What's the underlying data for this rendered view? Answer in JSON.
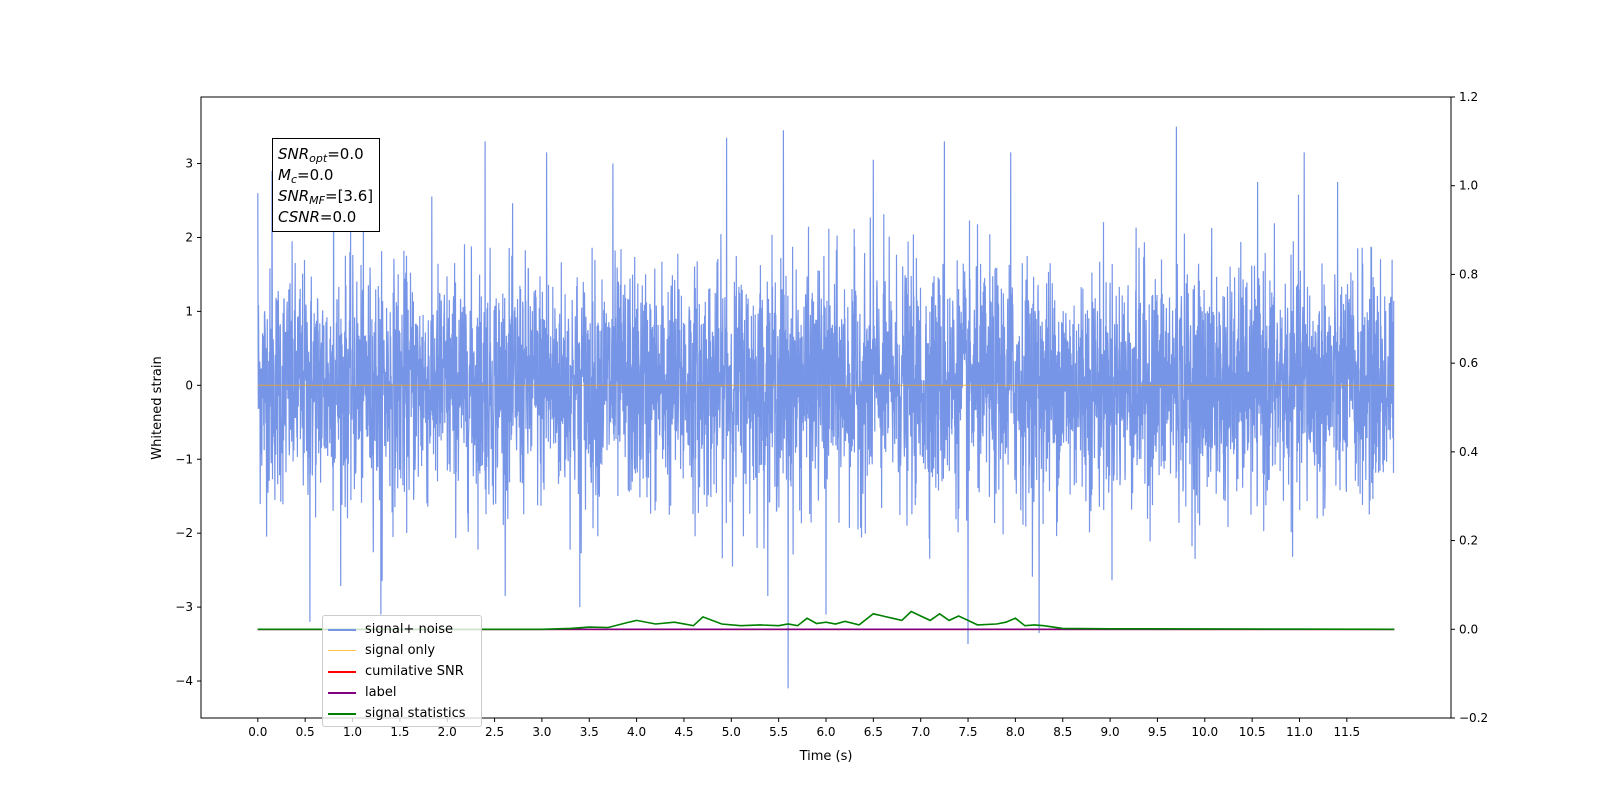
{
  "chart_data": {
    "type": "line",
    "title": "",
    "xlabel": "Time (s)",
    "ylabel": "Whitened strain",
    "xlim": [
      -0.6,
      12.6
    ],
    "ylim": [
      -4.5,
      3.9
    ],
    "y2lim": [
      -0.2,
      1.2
    ],
    "x_ticks": [
      "0.0",
      "0.5",
      "1.0",
      "1.5",
      "2.0",
      "2.5",
      "3.0",
      "3.5",
      "4.0",
      "4.5",
      "5.0",
      "5.5",
      "6.0",
      "6.5",
      "7.0",
      "7.5",
      "8.0",
      "8.5",
      "9.0",
      "9.5",
      "10.0",
      "10.5",
      "11.0",
      "11.5"
    ],
    "y_ticks": [
      "−4",
      "−3",
      "−2",
      "−1",
      "0",
      "1",
      "2",
      "3"
    ],
    "y2_ticks": [
      "−0.2",
      "0.0",
      "0.2",
      "0.4",
      "0.6",
      "0.8",
      "1.0",
      "1.2"
    ],
    "grid": false,
    "legend_position": "lower-left",
    "series": [
      {
        "name": "signal+ noise",
        "color": "#7795e7",
        "axis": "left",
        "description": "whitened noise, approx. Gaussian, std ~0.8, range -4.1 to 3.5, t = 0 to 12 s",
        "peaks": [
          [
            0.0,
            2.6
          ],
          [
            0.15,
            2.9
          ],
          [
            0.55,
            -3.2
          ],
          [
            0.8,
            2.8
          ],
          [
            1.3,
            -3.1
          ],
          [
            2.4,
            3.3
          ],
          [
            3.05,
            3.15
          ],
          [
            3.4,
            -3.0
          ],
          [
            3.75,
            3.0
          ],
          [
            4.95,
            3.35
          ],
          [
            5.55,
            3.45
          ],
          [
            5.6,
            -4.1
          ],
          [
            6.0,
            -3.1
          ],
          [
            6.5,
            3.05
          ],
          [
            7.25,
            3.3
          ],
          [
            7.5,
            -3.5
          ],
          [
            7.95,
            3.15
          ],
          [
            8.25,
            -3.35
          ],
          [
            9.7,
            3.5
          ],
          [
            11.05,
            3.15
          ]
        ]
      },
      {
        "name": "signal only",
        "color": "#ffa500",
        "axis": "left",
        "x": [
          0,
          12
        ],
        "y": [
          0,
          0
        ]
      },
      {
        "name": "cumilative SNR",
        "color": "#ff0000",
        "axis": "right",
        "x": [
          0,
          12
        ],
        "y": [
          0,
          0
        ]
      },
      {
        "name": "label",
        "color": "#800080",
        "axis": "right",
        "x": [
          0,
          12
        ],
        "y": [
          0,
          0
        ]
      },
      {
        "name": "signal statistics",
        "color": "#008000",
        "axis": "right",
        "x": [
          0,
          3.0,
          3.3,
          3.5,
          3.7,
          3.9,
          4.0,
          4.2,
          4.4,
          4.6,
          4.7,
          4.9,
          5.1,
          5.3,
          5.5,
          5.6,
          5.7,
          5.8,
          5.9,
          6.0,
          6.1,
          6.2,
          6.35,
          6.5,
          6.6,
          6.7,
          6.8,
          6.9,
          7.0,
          7.1,
          7.2,
          7.3,
          7.4,
          7.5,
          7.6,
          7.8,
          7.9,
          8.0,
          8.1,
          8.2,
          8.3,
          8.5,
          9.0,
          12.0
        ],
        "y": [
          0,
          0,
          0.002,
          0.005,
          0.004,
          0.015,
          0.02,
          0.012,
          0.016,
          0.008,
          0.028,
          0.012,
          0.008,
          0.01,
          0.008,
          0.012,
          0.008,
          0.025,
          0.013,
          0.016,
          0.012,
          0.018,
          0.01,
          0.035,
          0.03,
          0.025,
          0.02,
          0.04,
          0.03,
          0.02,
          0.035,
          0.02,
          0.03,
          0.02,
          0.01,
          0.012,
          0.016,
          0.025,
          0.008,
          0.01,
          0.008,
          0.002,
          0.001,
          0
        ]
      }
    ]
  },
  "stats_box": {
    "snr_opt": {
      "base": "SNR",
      "sub": "opt",
      "value": "=0.0"
    },
    "mc": {
      "base": "M",
      "sub": "c",
      "value": "=0.0"
    },
    "snr_mf": {
      "base": "SNR",
      "sub": "MF",
      "value": "=[3.6]"
    },
    "csnr": {
      "base": "CSNR",
      "value": "=0.0"
    }
  },
  "legend": {
    "entries": [
      {
        "label": "signal+ noise",
        "color": "#7795e7"
      },
      {
        "label": "signal only",
        "color": "#ffa500"
      },
      {
        "label": "cumilative SNR",
        "color": "#ff0000"
      },
      {
        "label": "label",
        "color": "#800080"
      },
      {
        "label": "signal statistics",
        "color": "#008000"
      }
    ]
  },
  "colors": {
    "axes": "#000000",
    "noise": "#7795e7",
    "signal": "#ffa500",
    "statistics": "#008000",
    "label": "#800080"
  }
}
